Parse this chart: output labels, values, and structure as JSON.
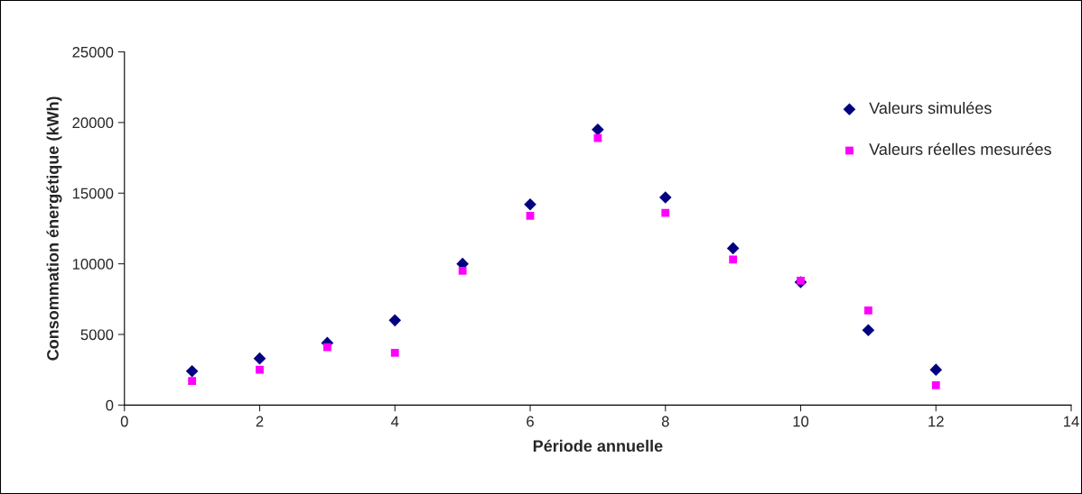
{
  "chart_data": {
    "type": "scatter",
    "xlabel": "Période annuelle",
    "ylabel": "Consommation énergétique (kWh)",
    "x": [
      1,
      2,
      3,
      4,
      5,
      6,
      7,
      8,
      9,
      10,
      11,
      12
    ],
    "series": [
      {
        "name": "Valeurs simulées",
        "color": "#000080",
        "marker": "diamond",
        "values": [
          2400,
          3300,
          4400,
          6000,
          10000,
          14200,
          19500,
          14700,
          11100,
          8700,
          5300,
          2500
        ]
      },
      {
        "name": "Valeurs réelles mesurées",
        "color": "#ff00ff",
        "marker": "square",
        "values": [
          1700,
          2500,
          4100,
          3700,
          9500,
          13400,
          18900,
          13600,
          10300,
          8800,
          6700,
          1400
        ]
      }
    ],
    "xlim": [
      0,
      14
    ],
    "xticks": [
      0,
      2,
      4,
      6,
      8,
      10,
      12,
      14
    ],
    "ylim": [
      0,
      25000
    ],
    "yticks": [
      0,
      5000,
      10000,
      15000,
      20000,
      25000
    ],
    "grid": false,
    "legend": "top right"
  }
}
